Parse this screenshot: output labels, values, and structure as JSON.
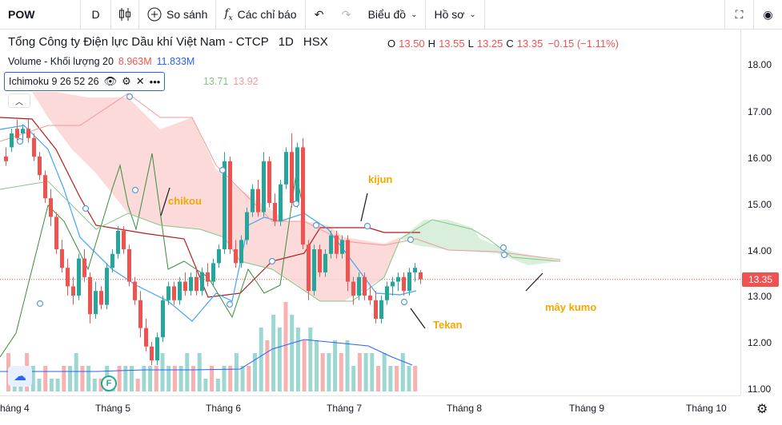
{
  "toolbar": {
    "symbol": "POW",
    "interval": "D",
    "compare_label": "So sánh",
    "indicators_label": "Các chỉ báo",
    "chart_label": "Biểu đồ",
    "profile_label": "Hồ sơ"
  },
  "legend": {
    "title": "Tổng Công ty Điện lực Dầu khí Việt Nam - CTCP",
    "interval": "1D",
    "exchange": "HSX",
    "o_label": "O",
    "o": "13.50",
    "h_label": "H",
    "h": "13.55",
    "l_label": "L",
    "l": "13.25",
    "c_label": "C",
    "c": "13.35",
    "change": "−0.15 (−1.11%)",
    "volume_label": "Volume - Khối lượng 20",
    "volume_value": "8.963M",
    "volume_ma": "11.833M",
    "ichimoku_label": "Ichimoku 9 26 52 26",
    "ichimoku_a": "13.71",
    "ichimoku_b": "13.92"
  },
  "price_axis": [
    "18.00",
    "17.00",
    "16.00",
    "15.00",
    "14.00",
    "13.00",
    "12.00",
    "11.00"
  ],
  "last_price": "13.35",
  "time_axis": [
    "háng 4",
    "Tháng 5",
    "Tháng 6",
    "Tháng 7",
    "Tháng 8",
    "Tháng 9",
    "Tháng 10"
  ],
  "annotations": {
    "chikou": "chikou",
    "kijun": "kijun",
    "tekan": "Tekan",
    "kumo": "mây kumo"
  },
  "colors": {
    "up": "#26a69a",
    "down": "#ef5350",
    "accent": "#2962ff",
    "annotation": "#f2a900"
  }
}
